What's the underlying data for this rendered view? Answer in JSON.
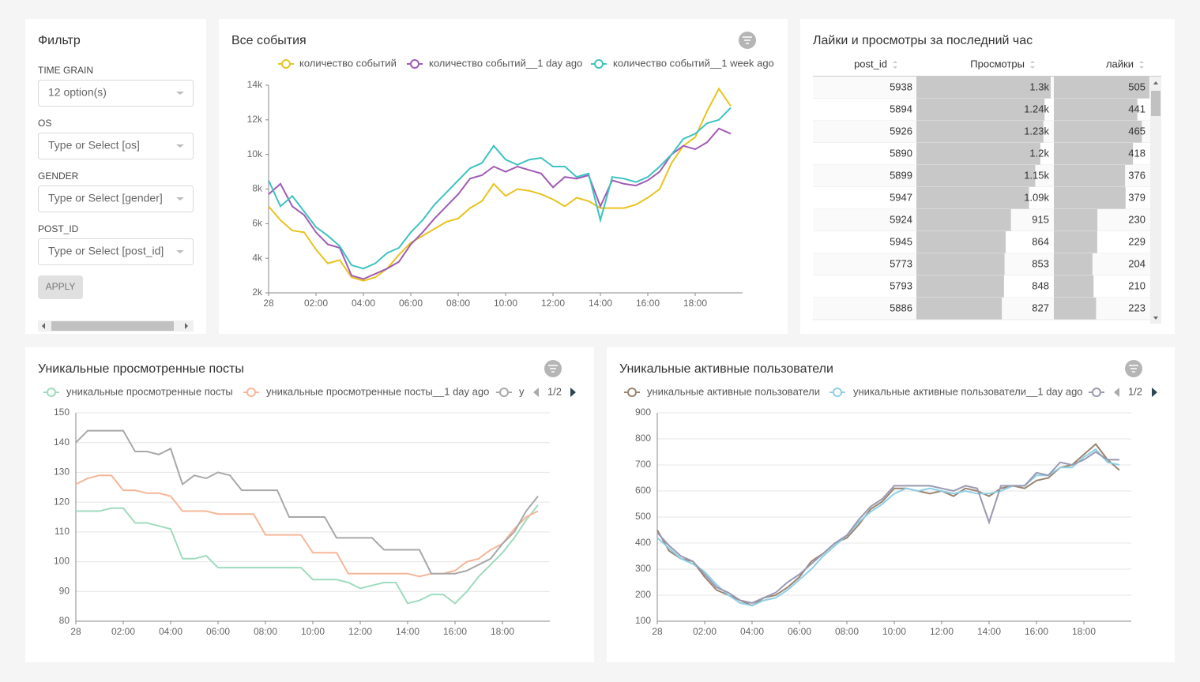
{
  "filter": {
    "title": "Фильтр",
    "fields": [
      {
        "label": "TIME GRAIN",
        "placeholder": "12 option(s)"
      },
      {
        "label": "OS",
        "placeholder": "Type or Select [os]"
      },
      {
        "label": "GENDER",
        "placeholder": "Type or Select [gender]"
      },
      {
        "label": "POST_ID",
        "placeholder": "Type or Select [post_id]"
      }
    ],
    "button": "APPLY"
  },
  "table": {
    "title": "Лайки и просмотры за последний час",
    "columns": [
      "post_id",
      "Просмотры",
      "лайки"
    ],
    "post_id": [
      5938,
      5894,
      5926,
      5890,
      5899,
      5947,
      5924,
      5945,
      5773,
      5793,
      5886
    ],
    "views": [
      1300,
      1240,
      1230,
      1200,
      1150,
      1090,
      915,
      864,
      853,
      848,
      827
    ],
    "views_labels": [
      "1.3k",
      "1.24k",
      "1.23k",
      "1.2k",
      "1.15k",
      "1.09k",
      "915",
      "864",
      "853",
      "848",
      "827"
    ],
    "likes": [
      505,
      441,
      465,
      418,
      376,
      379,
      230,
      229,
      204,
      210,
      223
    ]
  },
  "chart_data": [
    {
      "type": "line",
      "title": "Все события",
      "grid": false,
      "x": [
        0,
        0.5,
        1,
        1.5,
        2,
        2.5,
        3,
        3.5,
        4,
        4.5,
        5,
        5.5,
        6,
        6.5,
        7,
        7.5,
        8,
        8.5,
        9,
        9.5,
        10,
        10.5,
        11,
        11.5,
        12,
        12.5,
        13,
        13.5,
        14,
        14.5,
        15,
        15.5,
        16,
        16.5,
        17,
        17.5,
        18,
        18.5,
        19,
        19.5
      ],
      "xlim": [
        0,
        20
      ],
      "xticks": [
        {
          "value": 0,
          "label": "28"
        },
        {
          "value": 2,
          "label": "02:00"
        },
        {
          "value": 4,
          "label": "04:00"
        },
        {
          "value": 6,
          "label": "06:00"
        },
        {
          "value": 8,
          "label": "08:00"
        },
        {
          "value": 10,
          "label": "10:00"
        },
        {
          "value": 12,
          "label": "12:00"
        },
        {
          "value": 14,
          "label": "14:00"
        },
        {
          "value": 16,
          "label": "16:00"
        },
        {
          "value": 18,
          "label": "18:00"
        }
      ],
      "ylim": [
        2000,
        14000
      ],
      "yticks": [
        {
          "value": 2000,
          "label": "2k"
        },
        {
          "value": 4000,
          "label": "4k"
        },
        {
          "value": 6000,
          "label": "6k"
        },
        {
          "value": 8000,
          "label": "8k"
        },
        {
          "value": 10000,
          "label": "10k"
        },
        {
          "value": 12000,
          "label": "12k"
        },
        {
          "value": 14000,
          "label": "14k"
        }
      ],
      "series": [
        {
          "name": "количество событий",
          "color": "#e8c31e",
          "values": [
            7000,
            6200,
            5600,
            5500,
            4500,
            3700,
            3900,
            2900,
            2700,
            2900,
            3400,
            4200,
            4900,
            5300,
            5700,
            6100,
            6300,
            6900,
            7300,
            8300,
            7600,
            8000,
            7900,
            7700,
            7400,
            7000,
            7500,
            7300,
            6900,
            6900,
            6900,
            7100,
            7500,
            8000,
            9500,
            10500,
            11000,
            12500,
            13800,
            12800
          ]
        },
        {
          "name": "количество событий__1 day ago",
          "color": "#a05bb5",
          "values": [
            7700,
            8300,
            7000,
            6500,
            5500,
            4800,
            4600,
            3000,
            2800,
            3100,
            3400,
            3800,
            4800,
            5500,
            6300,
            7000,
            7700,
            8600,
            8800,
            9300,
            9000,
            9300,
            9100,
            8900,
            8100,
            8700,
            8600,
            8800,
            7000,
            8500,
            8300,
            8200,
            8500,
            9000,
            10000,
            10500,
            10300,
            10700,
            11500,
            11200
          ]
        },
        {
          "name": "количество событий__1 week ago",
          "color": "#3dc2c2",
          "values": [
            8500,
            7000,
            7600,
            6700,
            5800,
            5300,
            4700,
            3600,
            3400,
            3700,
            4300,
            4600,
            5500,
            6200,
            7100,
            7800,
            8500,
            9200,
            9500,
            10500,
            9700,
            9400,
            9700,
            9800,
            9300,
            9300,
            8700,
            8900,
            6200,
            8700,
            8600,
            8400,
            8700,
            9300,
            10000,
            10900,
            11200,
            11800,
            12000,
            12700
          ]
        }
      ]
    },
    {
      "type": "line",
      "title": "Уникальные просмотренные посты",
      "grid": true,
      "legend_page": "1/2",
      "x": [
        0,
        0.5,
        1,
        1.5,
        2,
        2.5,
        3,
        3.5,
        4,
        4.5,
        5,
        5.5,
        6,
        6.5,
        7,
        7.5,
        8,
        8.5,
        9,
        9.5,
        10,
        10.5,
        11,
        11.5,
        12,
        12.5,
        13,
        13.5,
        14,
        14.5,
        15,
        15.5,
        16,
        16.5,
        17,
        17.5,
        18,
        18.5,
        19,
        19.5
      ],
      "xlim": [
        0,
        20
      ],
      "xticks": [
        {
          "value": 0,
          "label": "28"
        },
        {
          "value": 2,
          "label": "02:00"
        },
        {
          "value": 4,
          "label": "04:00"
        },
        {
          "value": 6,
          "label": "06:00"
        },
        {
          "value": 8,
          "label": "08:00"
        },
        {
          "value": 10,
          "label": "10:00"
        },
        {
          "value": 12,
          "label": "12:00"
        },
        {
          "value": 14,
          "label": "14:00"
        },
        {
          "value": 16,
          "label": "16:00"
        },
        {
          "value": 18,
          "label": "18:00"
        }
      ],
      "ylim": [
        80,
        150
      ],
      "yticks": [
        80,
        90,
        100,
        110,
        120,
        130,
        140,
        150
      ],
      "series": [
        {
          "name": "уникальные просмотренные посты",
          "color": "#9fdbbd",
          "values": [
            117,
            117,
            117,
            118,
            118,
            113,
            113,
            112,
            111,
            101,
            101,
            102,
            98,
            98,
            98,
            98,
            98,
            98,
            98,
            98,
            94,
            94,
            94,
            93,
            91,
            92,
            93,
            93,
            86,
            87,
            89,
            89,
            86,
            90,
            95,
            99,
            103,
            108,
            114,
            119
          ]
        },
        {
          "name": "уникальные просмотренные посты__1 day ago",
          "color": "#f5b699",
          "values": [
            126,
            128,
            129,
            129,
            124,
            124,
            123,
            123,
            122,
            117,
            117,
            117,
            116,
            116,
            116,
            116,
            109,
            109,
            109,
            109,
            103,
            103,
            103,
            96,
            96,
            96,
            96,
            96,
            96,
            95,
            96,
            96,
            97,
            100,
            101,
            104,
            106,
            111,
            115,
            117
          ]
        },
        {
          "name": "у",
          "color": "#a8a8a8",
          "values": [
            140,
            144,
            144,
            144,
            144,
            137,
            137,
            136,
            138,
            126,
            129,
            128,
            130,
            129,
            124,
            124,
            124,
            124,
            115,
            115,
            115,
            115,
            108,
            108,
            108,
            108,
            104,
            104,
            104,
            104,
            96,
            96,
            96,
            97,
            99,
            101,
            106,
            110,
            117,
            122
          ]
        }
      ]
    },
    {
      "type": "line",
      "title": "Уникальные активные пользователи",
      "grid": true,
      "legend_page": "1/2",
      "x": [
        0,
        0.5,
        1,
        1.5,
        2,
        2.5,
        3,
        3.5,
        4,
        4.5,
        5,
        5.5,
        6,
        6.5,
        7,
        7.5,
        8,
        8.5,
        9,
        9.5,
        10,
        10.5,
        11,
        11.5,
        12,
        12.5,
        13,
        13.5,
        14,
        14.5,
        15,
        15.5,
        16,
        16.5,
        17,
        17.5,
        18,
        18.5,
        19,
        19.5
      ],
      "xlim": [
        0,
        20
      ],
      "xticks": [
        {
          "value": 0,
          "label": "28"
        },
        {
          "value": 2,
          "label": "02:00"
        },
        {
          "value": 4,
          "label": "04:00"
        },
        {
          "value": 6,
          "label": "06:00"
        },
        {
          "value": 8,
          "label": "08:00"
        },
        {
          "value": 10,
          "label": "10:00"
        },
        {
          "value": 12,
          "label": "12:00"
        },
        {
          "value": 14,
          "label": "14:00"
        },
        {
          "value": 16,
          "label": "16:00"
        },
        {
          "value": 18,
          "label": "18:00"
        }
      ],
      "ylim": [
        100,
        900
      ],
      "yticks": [
        100,
        200,
        300,
        400,
        500,
        600,
        700,
        800,
        900
      ],
      "series": [
        {
          "name": "уникальные активные пользователи",
          "color": "#9a8470",
          "values": [
            450,
            370,
            340,
            330,
            270,
            220,
            200,
            180,
            160,
            190,
            200,
            230,
            270,
            330,
            360,
            400,
            420,
            470,
            530,
            560,
            610,
            610,
            600,
            590,
            600,
            580,
            610,
            600,
            580,
            610,
            620,
            610,
            640,
            650,
            690,
            700,
            740,
            780,
            720,
            680
          ]
        },
        {
          "name": "уникальные активные пользователи__1 day ago",
          "color": "#8ecfe6",
          "values": [
            420,
            380,
            340,
            320,
            290,
            240,
            200,
            170,
            160,
            180,
            190,
            220,
            260,
            300,
            350,
            390,
            430,
            480,
            520,
            550,
            590,
            610,
            600,
            610,
            600,
            590,
            600,
            590,
            590,
            600,
            620,
            620,
            660,
            660,
            690,
            690,
            730,
            760,
            710,
            700
          ]
        },
        {
          "color": "#9999b0",
          "values": [
            440,
            390,
            350,
            330,
            280,
            230,
            210,
            180,
            170,
            190,
            210,
            250,
            280,
            320,
            360,
            400,
            430,
            490,
            540,
            570,
            620,
            620,
            620,
            620,
            610,
            600,
            620,
            610,
            480,
            620,
            620,
            620,
            670,
            660,
            710,
            700,
            720,
            750,
            720,
            720
          ]
        }
      ]
    }
  ]
}
